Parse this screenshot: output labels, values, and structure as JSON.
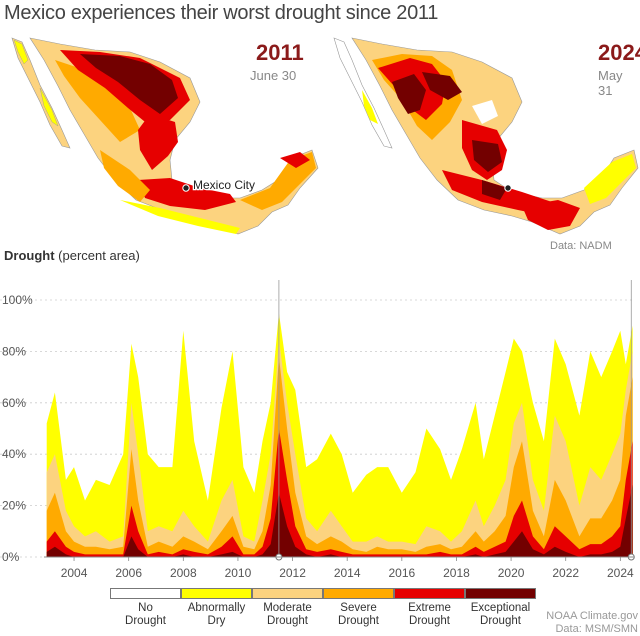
{
  "page": {
    "title": "Mexico experiences their worst drought since 2011"
  },
  "maps": [
    {
      "year": "2011",
      "date": "June 30",
      "label": "Mexico City"
    },
    {
      "year": "2024",
      "date": "May 31",
      "source": "Data: NADM"
    }
  ],
  "colors": {
    "no": "#ffffff",
    "abnormally_dry": "#ffff00",
    "moderate": "#fcd37f",
    "severe": "#ffaa00",
    "extreme": "#e60000",
    "exceptional": "#730000"
  },
  "chart_data": {
    "type": "area",
    "ylabel_bold": "Drought",
    "ylabel_rest": " (percent area)",
    "ylim": [
      0,
      100
    ],
    "y_ticks": [
      0,
      20,
      40,
      60,
      80,
      100
    ],
    "y_tick_labels": [
      "0%",
      "20%",
      "40%",
      "60%",
      "80%",
      "100%"
    ],
    "xlim": [
      2002.9,
      2024.5
    ],
    "x_ticks": [
      2004,
      2006,
      2008,
      2010,
      2012,
      2014,
      2016,
      2018,
      2020,
      2022,
      2024
    ],
    "x_tick_labels": [
      "2004",
      "2006",
      "2008",
      "2010",
      "2012",
      "2014",
      "2016",
      "2018",
      "2020",
      "2022",
      "2024"
    ],
    "markers": [
      2011.5,
      2024.4
    ],
    "x": [
      2003.0,
      2003.3,
      2003.7,
      2004.0,
      2004.4,
      2004.8,
      2005.3,
      2005.8,
      2006.1,
      2006.35,
      2006.7,
      2007.1,
      2007.6,
      2008.0,
      2008.4,
      2008.9,
      2009.4,
      2009.8,
      2010.2,
      2010.6,
      2010.9,
      2011.2,
      2011.5,
      2011.8,
      2012.1,
      2012.5,
      2012.9,
      2013.4,
      2013.8,
      2014.2,
      2014.7,
      2015.1,
      2015.5,
      2016.0,
      2016.5,
      2016.9,
      2017.4,
      2017.8,
      2018.2,
      2018.7,
      2019.0,
      2019.4,
      2019.8,
      2020.1,
      2020.4,
      2020.8,
      2021.2,
      2021.6,
      2022.0,
      2022.5,
      2022.9,
      2023.3,
      2023.7,
      2024.0,
      2024.2,
      2024.45
    ],
    "series": [
      {
        "name": "Abnormally Dry",
        "color_key": "abnormally_dry",
        "values": [
          52,
          64,
          30,
          35,
          22,
          30,
          28,
          40,
          83,
          70,
          40,
          35,
          35,
          88,
          45,
          22,
          58,
          80,
          35,
          25,
          45,
          60,
          95,
          72,
          65,
          35,
          38,
          48,
          40,
          25,
          32,
          35,
          35,
          25,
          33,
          50,
          42,
          30,
          42,
          60,
          38,
          55,
          72,
          85,
          80,
          60,
          45,
          85,
          75,
          55,
          80,
          70,
          80,
          88,
          75,
          90
        ]
      },
      {
        "name": "Moderate Drought",
        "color_key": "moderate",
        "values": [
          33,
          40,
          18,
          12,
          8,
          10,
          6,
          8,
          60,
          40,
          10,
          12,
          10,
          18,
          12,
          6,
          22,
          30,
          8,
          6,
          22,
          40,
          85,
          60,
          40,
          15,
          10,
          18,
          12,
          6,
          6,
          8,
          6,
          6,
          5,
          12,
          10,
          6,
          10,
          22,
          12,
          20,
          30,
          52,
          60,
          30,
          18,
          55,
          45,
          20,
          35,
          30,
          40,
          48,
          65,
          80
        ]
      },
      {
        "name": "Severe Drought",
        "color_key": "severe",
        "values": [
          18,
          25,
          10,
          6,
          4,
          4,
          3,
          4,
          42,
          22,
          4,
          6,
          4,
          8,
          6,
          3,
          10,
          16,
          4,
          3,
          10,
          28,
          78,
          50,
          25,
          8,
          5,
          8,
          6,
          3,
          2,
          4,
          3,
          3,
          2,
          4,
          5,
          3,
          4,
          10,
          6,
          10,
          16,
          35,
          45,
          18,
          8,
          30,
          22,
          8,
          15,
          15,
          22,
          30,
          55,
          70
        ]
      },
      {
        "name": "Extreme Drought",
        "color_key": "extreme",
        "values": [
          6,
          10,
          4,
          2,
          1,
          1,
          1,
          1,
          20,
          10,
          1,
          2,
          1,
          3,
          2,
          1,
          4,
          8,
          1,
          1,
          4,
          15,
          50,
          30,
          12,
          3,
          2,
          3,
          2,
          1,
          1,
          1,
          1,
          1,
          1,
          1,
          2,
          1,
          1,
          4,
          2,
          4,
          6,
          16,
          22,
          8,
          3,
          12,
          8,
          3,
          5,
          5,
          8,
          12,
          30,
          45
        ]
      },
      {
        "name": "Exceptional Drought",
        "color_key": "exceptional",
        "values": [
          2,
          4,
          1,
          0,
          0,
          0,
          0,
          0,
          8,
          3,
          0,
          0,
          0,
          1,
          0,
          0,
          1,
          2,
          0,
          0,
          1,
          5,
          25,
          12,
          4,
          1,
          0,
          1,
          0,
          0,
          0,
          0,
          0,
          0,
          0,
          0,
          0,
          0,
          0,
          1,
          0,
          1,
          2,
          6,
          10,
          3,
          1,
          4,
          2,
          0,
          1,
          1,
          2,
          4,
          15,
          28
        ]
      }
    ]
  },
  "legend": [
    {
      "line1": "No",
      "line2": "Drought",
      "color_key": "no"
    },
    {
      "line1": "Abnormally",
      "line2": "Dry",
      "color_key": "abnormally_dry"
    },
    {
      "line1": "Moderate",
      "line2": "Drought",
      "color_key": "moderate"
    },
    {
      "line1": "Severe",
      "line2": "Drought",
      "color_key": "severe"
    },
    {
      "line1": "Extreme",
      "line2": "Drought",
      "color_key": "extreme"
    },
    {
      "line1": "Exceptional",
      "line2": "Drought",
      "color_key": "exceptional"
    }
  ],
  "footer": {
    "line1": "NOAA Climate.gov",
    "line2": "Data: MSM/SMN"
  }
}
